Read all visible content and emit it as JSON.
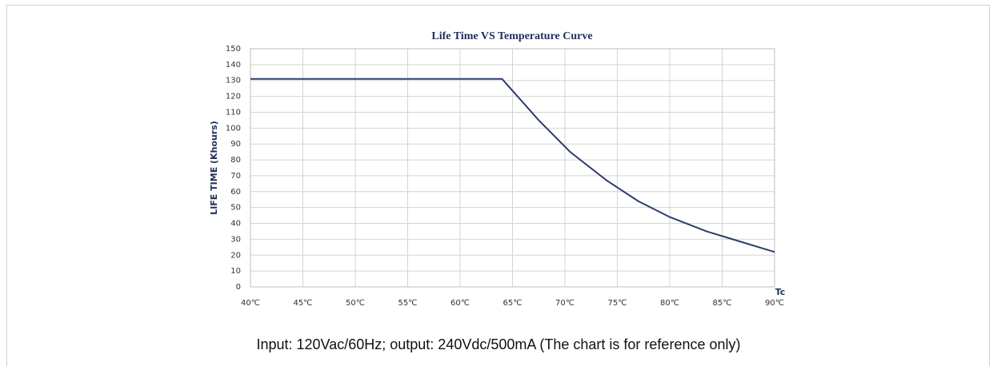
{
  "chart_data": {
    "type": "line",
    "title": "Life Time VS  Temperature Curve",
    "y_label": "LIFE TIME (Khours)",
    "x_label": "Tc",
    "caption": "Input: 120Vac/60Hz; output: 240Vdc/500mA (The chart is for reference only)",
    "x": [
      40,
      64,
      67.5,
      70.5,
      74,
      77,
      80,
      83.5,
      87,
      90
    ],
    "series": [
      {
        "name": "Life time",
        "color": "#2e3d6b",
        "values": [
          131,
          131,
          105,
          85,
          67,
          54,
          44,
          35,
          28,
          22
        ]
      }
    ],
    "xlim": [
      40,
      90
    ],
    "xticks": [
      {
        "value": 40,
        "label": "40℃"
      },
      {
        "value": 45,
        "label": "45℃"
      },
      {
        "value": 50,
        "label": "50℃"
      },
      {
        "value": 55,
        "label": "55℃"
      },
      {
        "value": 60,
        "label": "60℃"
      },
      {
        "value": 65,
        "label": "65℃"
      },
      {
        "value": 70,
        "label": "70℃"
      },
      {
        "value": 75,
        "label": "75℃"
      },
      {
        "value": 80,
        "label": "80℃"
      },
      {
        "value": 85,
        "label": "85℃"
      },
      {
        "value": 90,
        "label": "90℃"
      }
    ],
    "ylim": [
      0,
      150
    ],
    "yticks": [
      0,
      10,
      20,
      30,
      40,
      50,
      60,
      70,
      80,
      90,
      100,
      110,
      120,
      130,
      140,
      150
    ],
    "grid": true
  }
}
